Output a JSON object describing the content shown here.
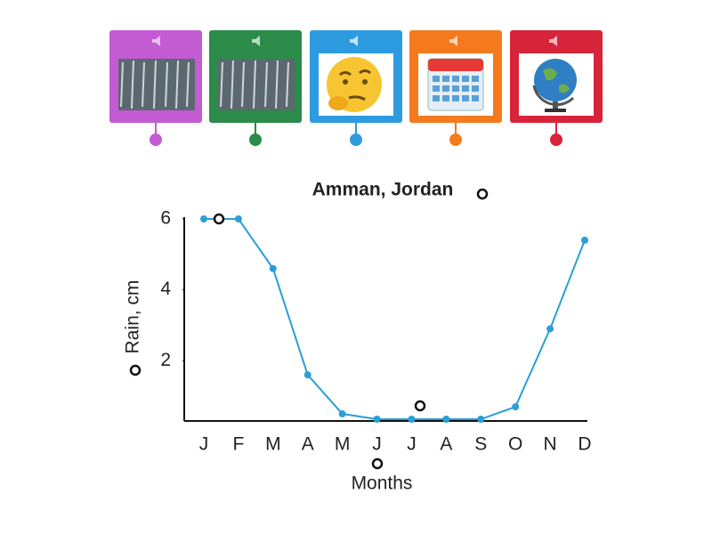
{
  "chart_data": {
    "type": "line",
    "title": "Amman, Jordan",
    "x_label": "Months",
    "y_label": "Rain, cm",
    "categories": [
      "J",
      "F",
      "M",
      "A",
      "M",
      "J",
      "J",
      "A",
      "S",
      "O",
      "N",
      "D"
    ],
    "values": [
      6.0,
      6.0,
      4.6,
      1.6,
      0.5,
      0.35,
      0.35,
      0.35,
      0.35,
      0.7,
      2.9,
      5.4
    ],
    "color": "#2a9fd6",
    "ylim": [
      0.3,
      6
    ],
    "yticks": [
      2,
      4,
      6
    ],
    "grid": false
  }
}
